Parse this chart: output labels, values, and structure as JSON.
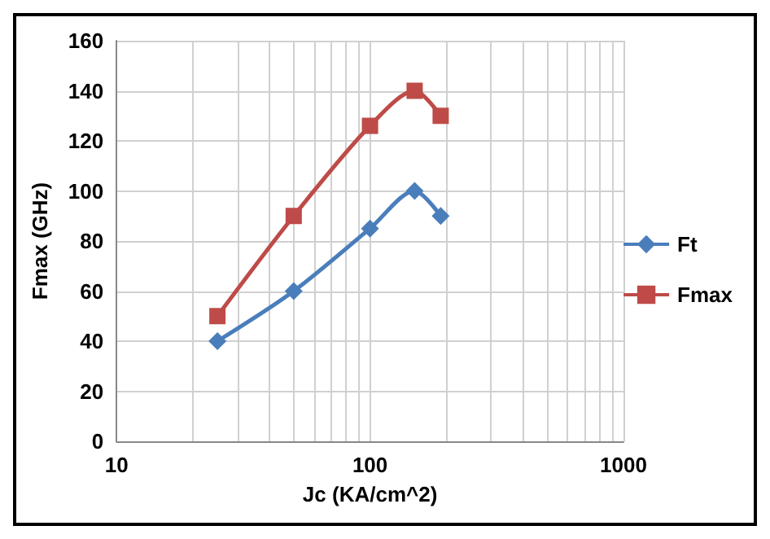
{
  "chart_data": {
    "type": "line",
    "xlabel": "Jc (KA/cm^2)",
    "ylabel": "Fmax (GHz)",
    "log": "x",
    "xlim": [
      10,
      1000
    ],
    "xticks": [
      10,
      {
        "value": 20,
        "label": null
      },
      {
        "value": 30,
        "label": null
      },
      {
        "value": 40,
        "label": null
      },
      {
        "value": 50,
        "label": null
      },
      {
        "value": 60,
        "label": null
      },
      {
        "value": 70,
        "label": null
      },
      {
        "value": 80,
        "label": null
      },
      {
        "value": 90,
        "label": null
      },
      100,
      {
        "value": 200,
        "label": null
      },
      {
        "value": 300,
        "label": null
      },
      {
        "value": 400,
        "label": null
      },
      {
        "value": 500,
        "label": null
      },
      {
        "value": 600,
        "label": null
      },
      {
        "value": 700,
        "label": null
      },
      {
        "value": 800,
        "label": null
      },
      {
        "value": 900,
        "label": null
      },
      1000
    ],
    "ylim": [
      0,
      160
    ],
    "yticks": [
      0,
      20,
      40,
      60,
      80,
      100,
      120,
      140,
      160
    ],
    "grid": true,
    "legend": "right",
    "line_style": "solid",
    "x": [
      25,
      50,
      100,
      150,
      190
    ],
    "series": [
      {
        "name": "Ft",
        "color": "#4a7ebb",
        "marker": "diamond",
        "values": [
          40,
          60,
          85,
          100,
          90
        ]
      },
      {
        "name": "Fmax",
        "color": "#be4b48",
        "marker": "square",
        "values": [
          50,
          90,
          126,
          140,
          130
        ]
      }
    ]
  }
}
